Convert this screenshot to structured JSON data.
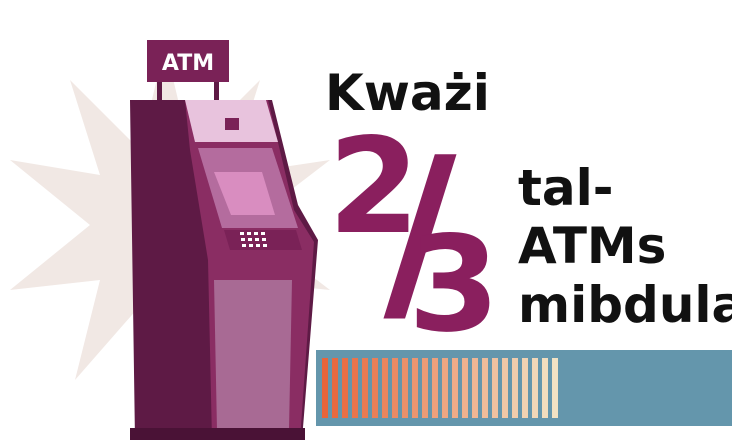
{
  "sign": "ATM",
  "headline": {
    "lead": "Kważi",
    "numerator": "2",
    "slash": "/",
    "denominator": "3",
    "lines": [
      "tal-",
      "ATMs",
      "mibdula"
    ]
  }
}
